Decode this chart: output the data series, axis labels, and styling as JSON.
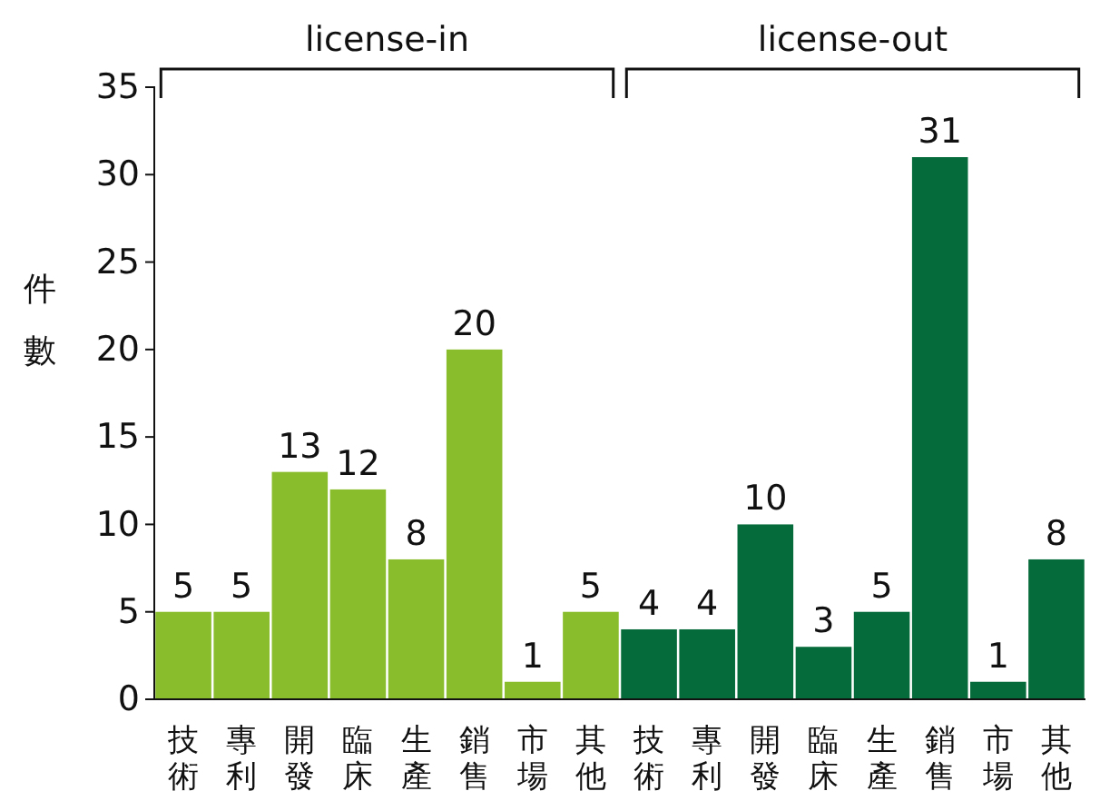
{
  "chart_data": {
    "type": "bar",
    "ylabel": "件數",
    "categories": [
      "技術",
      "專利",
      "開發",
      "臨床",
      "生產",
      "銷售",
      "市場",
      "其他",
      "技術",
      "專利",
      "開發",
      "臨床",
      "生產",
      "銷售",
      "市場",
      "其他"
    ],
    "values": [
      5,
      5,
      13,
      12,
      8,
      20,
      1,
      5,
      4,
      4,
      10,
      3,
      5,
      31,
      1,
      8
    ],
    "colors": [
      "#8abd2b",
      "#8abd2b",
      "#8abd2b",
      "#8abd2b",
      "#8abd2b",
      "#8abd2b",
      "#8abd2b",
      "#8abd2b",
      "#066b3a",
      "#066b3a",
      "#066b3a",
      "#066b3a",
      "#066b3a",
      "#066b3a",
      "#066b3a",
      "#066b3a"
    ],
    "ylim": [
      0,
      35
    ],
    "yticks": [
      0,
      5,
      10,
      15,
      20,
      25,
      30,
      35
    ],
    "data_labels": true,
    "grid": false,
    "annotations": [
      "license-in",
      "license-out"
    ]
  }
}
